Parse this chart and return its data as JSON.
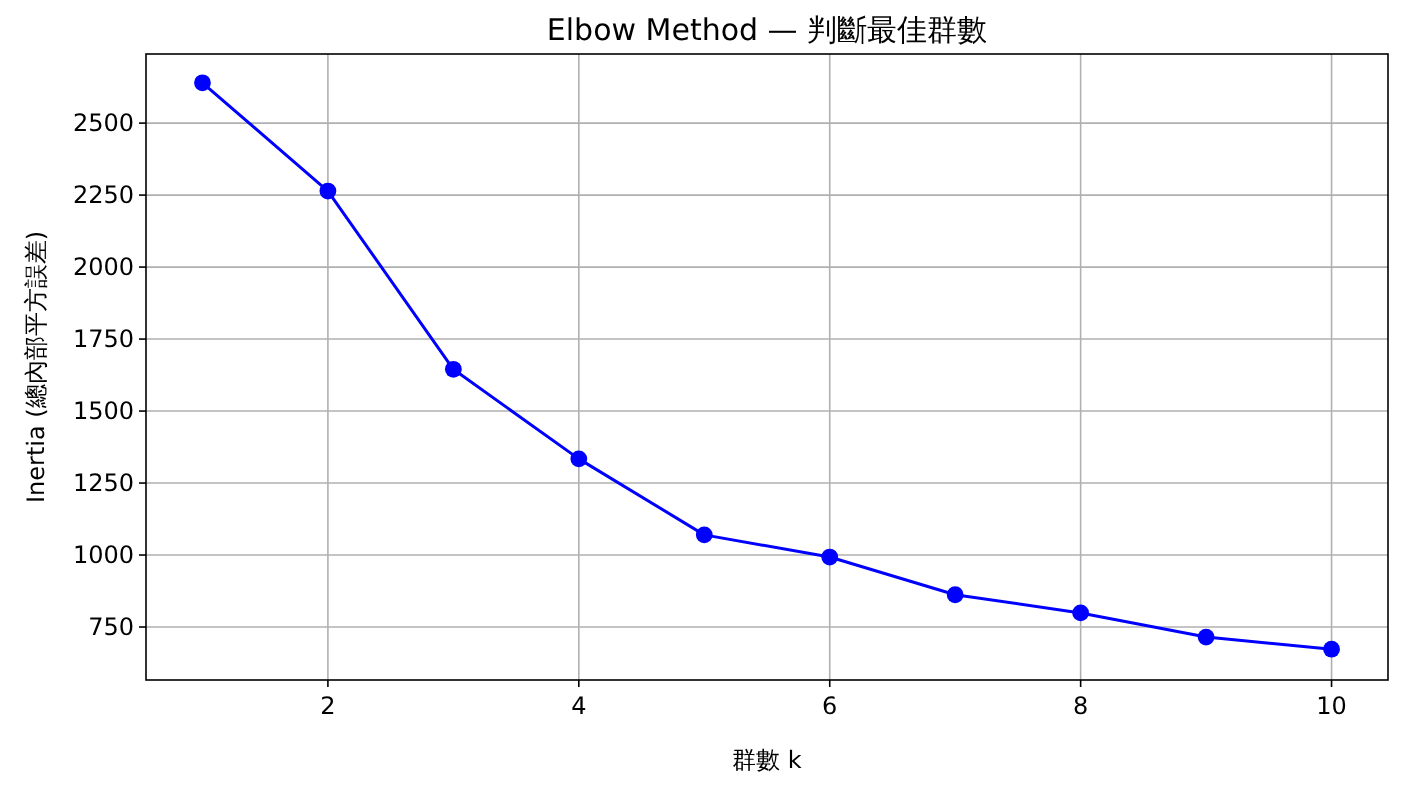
{
  "chart_data": {
    "type": "line",
    "title": "Elbow Method — 判斷最佳群數",
    "xlabel": "群數 k",
    "ylabel": "Inertia (總內部平方誤差)",
    "x": [
      1,
      2,
      3,
      4,
      5,
      6,
      7,
      8,
      9,
      10
    ],
    "series": [
      {
        "color": "#0000ff",
        "values": [
          2640,
          2264,
          1645,
          1334,
          1070,
          993,
          862,
          799,
          715,
          673
        ]
      }
    ],
    "xlim": [
      0.55,
      10.45
    ],
    "xticks": [
      2,
      4,
      6,
      8,
      10
    ],
    "ylim": [
      566,
      2740
    ],
    "yticks": [
      750,
      1000,
      1250,
      1500,
      1750,
      2000,
      2250,
      2500
    ],
    "grid": true,
    "marker": "circle",
    "line_style": "solid"
  }
}
